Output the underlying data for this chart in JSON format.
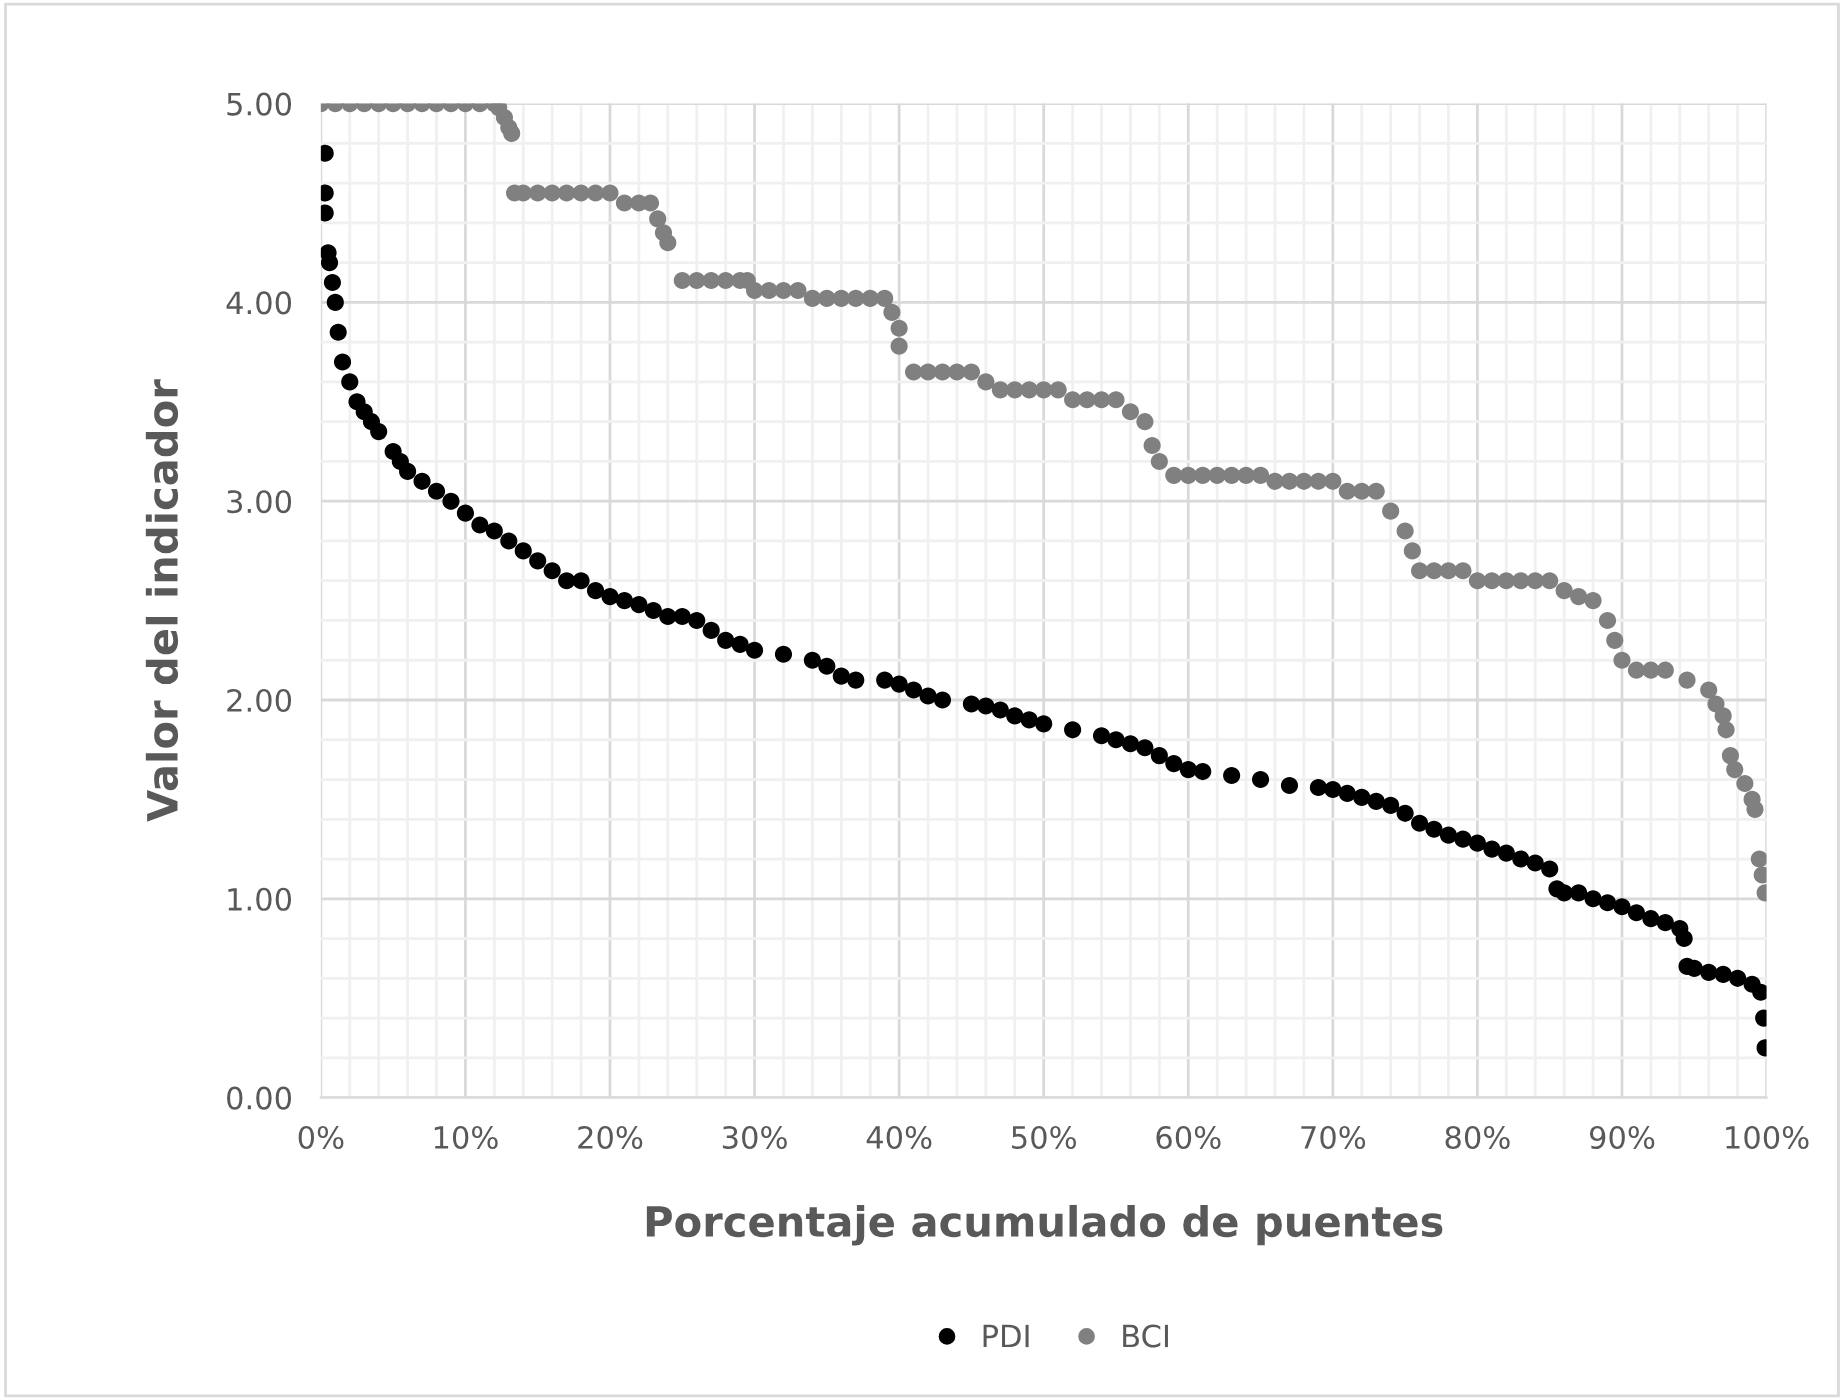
{
  "chart_data": {
    "type": "scatter",
    "xlabel": "Porcentaje acumulado de puentes",
    "ylabel": "Valor del indicador",
    "xlim": [
      0,
      100
    ],
    "ylim": [
      0,
      5
    ],
    "xticks": [
      {
        "value": 0,
        "label": "0%"
      },
      {
        "value": 10,
        "label": "10%"
      },
      {
        "value": 20,
        "label": "20%"
      },
      {
        "value": 30,
        "label": "30%"
      },
      {
        "value": 40,
        "label": "40%"
      },
      {
        "value": 50,
        "label": "50%"
      },
      {
        "value": 60,
        "label": "60%"
      },
      {
        "value": 70,
        "label": "70%"
      },
      {
        "value": 80,
        "label": "80%"
      },
      {
        "value": 90,
        "label": "90%"
      },
      {
        "value": 100,
        "label": "100%"
      }
    ],
    "yticks": [
      {
        "value": 0,
        "label": "0.00"
      },
      {
        "value": 1,
        "label": "1.00"
      },
      {
        "value": 2,
        "label": "2.00"
      },
      {
        "value": 3,
        "label": "3.00"
      },
      {
        "value": 4,
        "label": "4.00"
      },
      {
        "value": 5,
        "label": "5.00"
      }
    ],
    "grid": true,
    "legend": "bottom",
    "marker": "circle",
    "series": [
      {
        "name": "PDI",
        "color": "#000000",
        "x": [
          0.3,
          0.3,
          0.3,
          0.5,
          0.6,
          0.8,
          1.0,
          1.2,
          1.5,
          2,
          2.5,
          3,
          3.5,
          4,
          5,
          5.5,
          6,
          7,
          8,
          9,
          10,
          11,
          12,
          13,
          14,
          15,
          16,
          17,
          18,
          19,
          20,
          21,
          22,
          23,
          24,
          25,
          26,
          27,
          28,
          29,
          30,
          32,
          34,
          35,
          36,
          37,
          39,
          40,
          41,
          42,
          43,
          45,
          46,
          47,
          48,
          49,
          50,
          52,
          54,
          55,
          56,
          57,
          58,
          59,
          60,
          61,
          63,
          65,
          67,
          69,
          70,
          71,
          72,
          73,
          74,
          75,
          76,
          77,
          78,
          79,
          80,
          81,
          82,
          83,
          84,
          85,
          85.5,
          86,
          87,
          88,
          89,
          90,
          91,
          92,
          93,
          94,
          94.3,
          94.5,
          95,
          96,
          97,
          98,
          99,
          99.6,
          99.8,
          99.9
        ],
        "values": [
          4.75,
          4.55,
          4.45,
          4.25,
          4.2,
          4.1,
          4.0,
          3.85,
          3.7,
          3.6,
          3.5,
          3.45,
          3.4,
          3.35,
          3.25,
          3.2,
          3.15,
          3.1,
          3.05,
          3.0,
          2.94,
          2.88,
          2.85,
          2.8,
          2.75,
          2.7,
          2.65,
          2.6,
          2.6,
          2.55,
          2.52,
          2.5,
          2.48,
          2.45,
          2.42,
          2.42,
          2.4,
          2.35,
          2.3,
          2.28,
          2.25,
          2.23,
          2.2,
          2.17,
          2.12,
          2.1,
          2.1,
          2.08,
          2.05,
          2.02,
          2.0,
          1.98,
          1.97,
          1.95,
          1.92,
          1.9,
          1.88,
          1.85,
          1.82,
          1.8,
          1.78,
          1.76,
          1.72,
          1.68,
          1.65,
          1.64,
          1.62,
          1.6,
          1.57,
          1.56,
          1.55,
          1.53,
          1.51,
          1.49,
          1.47,
          1.43,
          1.38,
          1.35,
          1.32,
          1.3,
          1.28,
          1.25,
          1.23,
          1.2,
          1.18,
          1.15,
          1.05,
          1.03,
          1.03,
          1.0,
          0.98,
          0.96,
          0.93,
          0.9,
          0.88,
          0.85,
          0.8,
          0.66,
          0.65,
          0.63,
          0.62,
          0.6,
          0.57,
          0.53,
          0.4,
          0.25
        ]
      },
      {
        "name": "BCI",
        "color": "#808080",
        "x": [
          0,
          1,
          2,
          3,
          4,
          5,
          6,
          7,
          8,
          9,
          10,
          11,
          12,
          12.3,
          12.7,
          13,
          13.2,
          13.4,
          14,
          15,
          16,
          17,
          18,
          19,
          20,
          21,
          22,
          22.8,
          23.3,
          23.7,
          24,
          25,
          26,
          27,
          28,
          29,
          29.5,
          30,
          31,
          32,
          33,
          34,
          35,
          36,
          37,
          38,
          39,
          39.5,
          40,
          40,
          41,
          42,
          43,
          44,
          45,
          46,
          47,
          48,
          49,
          50,
          51,
          52,
          53,
          54,
          55,
          56,
          57,
          57.5,
          58,
          59,
          60,
          61,
          62,
          63,
          64,
          65,
          66,
          67,
          68,
          69,
          70,
          71,
          72,
          73,
          74,
          75,
          75.5,
          76,
          77,
          78,
          79,
          80,
          81,
          82,
          83,
          84,
          85,
          86,
          87,
          88,
          89,
          89.5,
          90,
          91,
          92,
          93,
          94.5,
          96,
          96.5,
          97,
          97.2,
          97.5,
          97.8,
          98.5,
          99,
          99.2,
          99.5,
          99.7,
          99.9
        ],
        "values": [
          5.0,
          5.0,
          5.0,
          5.0,
          5.0,
          5.0,
          5.0,
          5.0,
          5.0,
          5.0,
          5.0,
          5.0,
          5.0,
          4.98,
          4.93,
          4.88,
          4.85,
          4.55,
          4.55,
          4.55,
          4.55,
          4.55,
          4.55,
          4.55,
          4.55,
          4.5,
          4.5,
          4.5,
          4.42,
          4.35,
          4.3,
          4.11,
          4.11,
          4.11,
          4.11,
          4.11,
          4.11,
          4.06,
          4.06,
          4.06,
          4.06,
          4.02,
          4.02,
          4.02,
          4.02,
          4.02,
          4.02,
          3.95,
          3.87,
          3.78,
          3.65,
          3.65,
          3.65,
          3.65,
          3.65,
          3.6,
          3.56,
          3.56,
          3.56,
          3.56,
          3.56,
          3.51,
          3.51,
          3.51,
          3.51,
          3.45,
          3.4,
          3.28,
          3.2,
          3.13,
          3.13,
          3.13,
          3.13,
          3.13,
          3.13,
          3.13,
          3.1,
          3.1,
          3.1,
          3.1,
          3.1,
          3.05,
          3.05,
          3.05,
          2.95,
          2.85,
          2.75,
          2.65,
          2.65,
          2.65,
          2.65,
          2.6,
          2.6,
          2.6,
          2.6,
          2.6,
          2.6,
          2.55,
          2.52,
          2.5,
          2.4,
          2.3,
          2.2,
          2.15,
          2.15,
          2.15,
          2.1,
          2.05,
          1.98,
          1.92,
          1.85,
          1.72,
          1.65,
          1.58,
          1.5,
          1.45,
          1.2,
          1.12,
          1.03
        ]
      }
    ]
  }
}
